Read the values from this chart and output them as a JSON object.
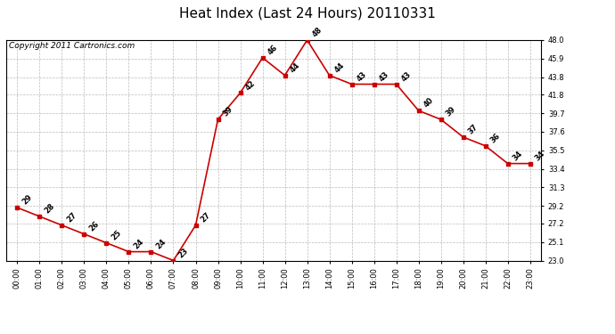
{
  "title": "Heat Index (Last 24 Hours) 20110331",
  "copyright": "Copyright 2011 Cartronics.com",
  "hours": [
    "00:00",
    "01:00",
    "02:00",
    "03:00",
    "04:00",
    "05:00",
    "06:00",
    "07:00",
    "08:00",
    "09:00",
    "10:00",
    "11:00",
    "12:00",
    "13:00",
    "14:00",
    "15:00",
    "16:00",
    "17:00",
    "18:00",
    "19:00",
    "20:00",
    "21:00",
    "22:00",
    "23:00"
  ],
  "values": [
    29,
    28,
    27,
    26,
    25,
    24,
    24,
    23,
    27,
    39,
    42,
    46,
    44,
    48,
    44,
    43,
    43,
    43,
    40,
    39,
    37,
    36,
    34,
    34
  ],
  "line_color": "#cc0000",
  "marker_color": "#cc0000",
  "bg_color": "#ffffff",
  "grid_color": "#bbbbbb",
  "ylim_min": 23.0,
  "ylim_max": 48.0,
  "yticks": [
    23.0,
    25.1,
    27.2,
    29.2,
    31.3,
    33.4,
    35.5,
    37.6,
    39.7,
    41.8,
    43.8,
    45.9,
    48.0
  ],
  "title_fontsize": 11,
  "copyright_fontsize": 6.5,
  "label_fontsize": 6,
  "tick_fontsize": 6,
  "figwidth": 6.9,
  "figheight": 3.75,
  "dpi": 100
}
